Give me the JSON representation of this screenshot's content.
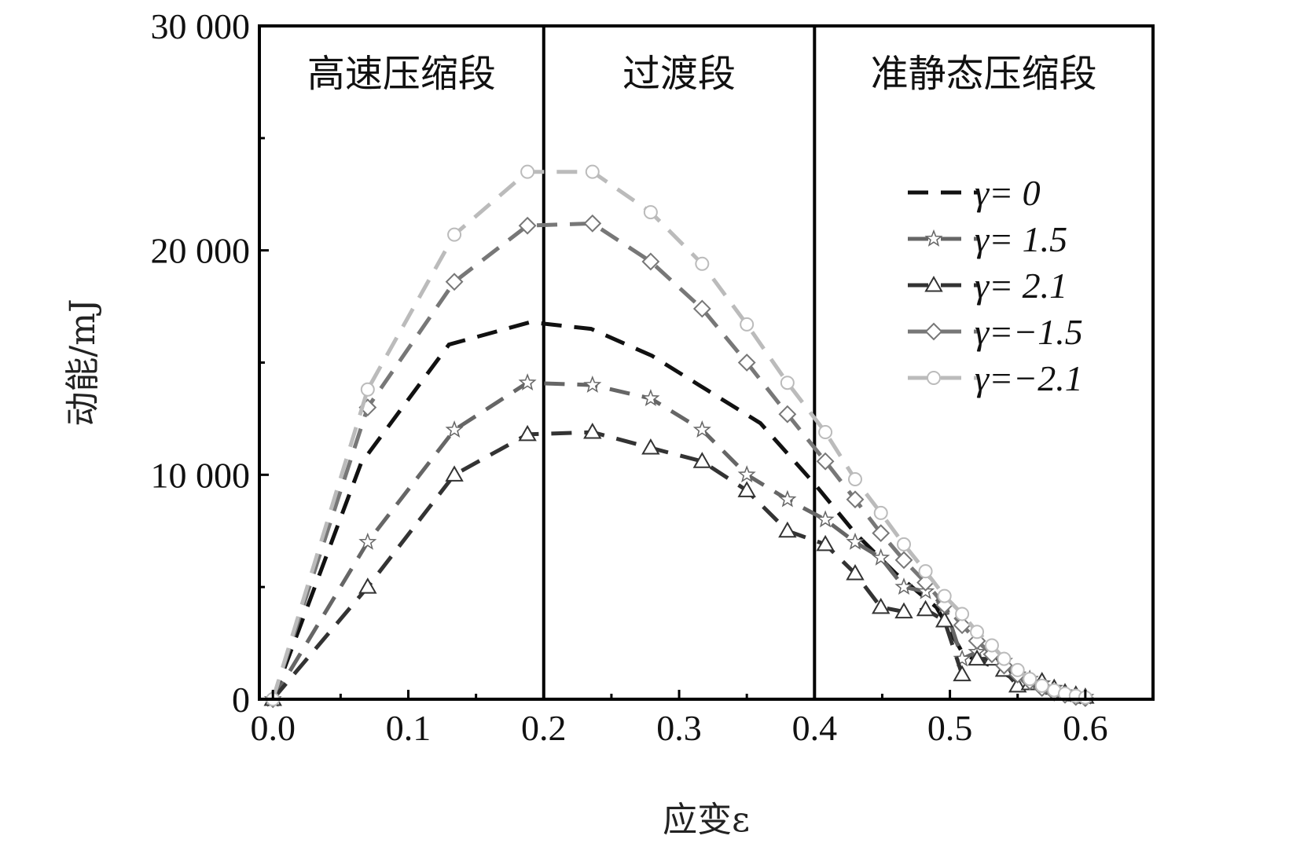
{
  "chart_data": {
    "type": "line",
    "title": "",
    "xlabel": "应变ε",
    "ylabel": "动能/mJ",
    "xlim": [
      -0.01,
      0.65
    ],
    "ylim": [
      0,
      30000
    ],
    "x_ticks": [
      {
        "value": 0.0,
        "label": "0.0"
      },
      {
        "value": 0.1,
        "label": "0.1"
      },
      {
        "value": 0.2,
        "label": "0.2"
      },
      {
        "value": 0.3,
        "label": "0.3"
      },
      {
        "value": 0.4,
        "label": "0.4"
      },
      {
        "value": 0.5,
        "label": "0.5"
      },
      {
        "value": 0.6,
        "label": "0.6"
      }
    ],
    "y_ticks": [
      {
        "value": 0,
        "label": "0"
      },
      {
        "value": 10000,
        "label": "10 000"
      },
      {
        "value": 20000,
        "label": "20 000"
      },
      {
        "value": 30000,
        "label": "30 000"
      }
    ],
    "grid": false,
    "legend_position": "top-right",
    "regions": [
      {
        "label": "高速压缩段",
        "from": -0.01,
        "to": 0.2
      },
      {
        "label": "过渡段",
        "from": 0.2,
        "to": 0.4
      },
      {
        "label": "准静态压缩段",
        "from": 0.4,
        "to": 0.65
      }
    ],
    "boundaries": [
      0.2,
      0.4
    ],
    "series": [
      {
        "name": "γ= 0",
        "color": "#111111",
        "marker": "none",
        "x": [
          0.0,
          0.065,
          0.13,
          0.19,
          0.235,
          0.28,
          0.32,
          0.36,
          0.4,
          0.43,
          0.46,
          0.49,
          0.51,
          0.53,
          0.55,
          0.57,
          0.6
        ],
        "y": [
          0,
          10500,
          15800,
          16800,
          16500,
          15300,
          13800,
          12300,
          9600,
          7400,
          5600,
          4100,
          2000,
          1500,
          800,
          400,
          100
        ]
      },
      {
        "name": "γ= 1.5",
        "color": "#666666",
        "marker": "star",
        "x": [
          0.0,
          0.07,
          0.134,
          0.188,
          0.236,
          0.279,
          0.317,
          0.35,
          0.38,
          0.408,
          0.43,
          0.449,
          0.466,
          0.482,
          0.496,
          0.509,
          0.52,
          0.531,
          0.54,
          0.55,
          0.559,
          0.568,
          0.577,
          0.585,
          0.593,
          0.6
        ],
        "y": [
          0,
          7000,
          12000,
          14100,
          14000,
          13400,
          12000,
          10000,
          8900,
          8000,
          7000,
          6300,
          5000,
          4800,
          4200,
          1800,
          2100,
          1900,
          1700,
          1100,
          900,
          700,
          500,
          300,
          200,
          100
        ]
      },
      {
        "name": "γ= 2.1",
        "color": "#333333",
        "marker": "triangle",
        "x": [
          0.0,
          0.07,
          0.134,
          0.188,
          0.236,
          0.279,
          0.317,
          0.35,
          0.38,
          0.408,
          0.43,
          0.449,
          0.466,
          0.482,
          0.496,
          0.509,
          0.52,
          0.531,
          0.54,
          0.55,
          0.559,
          0.568,
          0.577,
          0.585,
          0.593,
          0.6
        ],
        "y": [
          0,
          5000,
          10000,
          11800,
          11900,
          11200,
          10600,
          9300,
          7500,
          6900,
          5600,
          4100,
          3900,
          4000,
          3500,
          1100,
          1800,
          1800,
          1300,
          600,
          700,
          800,
          500,
          300,
          200,
          100
        ]
      },
      {
        "name": "γ=−1.5",
        "color": "#777777",
        "marker": "diamond",
        "x": [
          0.0,
          0.07,
          0.134,
          0.188,
          0.236,
          0.279,
          0.317,
          0.35,
          0.38,
          0.408,
          0.43,
          0.449,
          0.466,
          0.482,
          0.496,
          0.509,
          0.52,
          0.531,
          0.54,
          0.55,
          0.559,
          0.568,
          0.577,
          0.585,
          0.593,
          0.6
        ],
        "y": [
          0,
          13000,
          18600,
          21100,
          21200,
          19500,
          17400,
          15000,
          12700,
          10600,
          8900,
          7400,
          6200,
          5200,
          4200,
          3300,
          2600,
          2000,
          1500,
          1100,
          800,
          500,
          300,
          200,
          100,
          50
        ]
      },
      {
        "name": "γ=−2.1",
        "color": "#bbbbbb",
        "marker": "circle",
        "x": [
          0.0,
          0.07,
          0.134,
          0.188,
          0.236,
          0.279,
          0.317,
          0.35,
          0.38,
          0.408,
          0.43,
          0.449,
          0.466,
          0.482,
          0.496,
          0.509,
          0.52,
          0.531,
          0.54,
          0.55,
          0.559,
          0.568,
          0.577,
          0.585,
          0.593,
          0.6
        ],
        "y": [
          0,
          13800,
          20700,
          23500,
          23500,
          21700,
          19400,
          16700,
          14100,
          11900,
          9800,
          8300,
          6900,
          5700,
          4600,
          3800,
          3000,
          2400,
          1800,
          1300,
          900,
          600,
          400,
          250,
          150,
          80
        ]
      }
    ]
  }
}
